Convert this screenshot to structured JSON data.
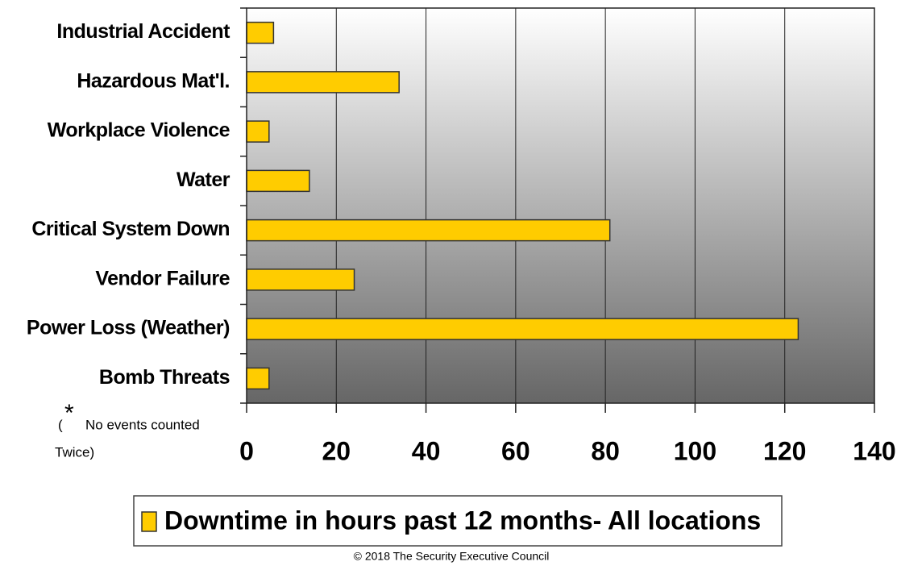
{
  "chart_data": {
    "type": "barh",
    "categories": [
      "Industrial Accident",
      "Hazardous Mat'l.",
      "Workplace Violence",
      "Water",
      "Critical System Down",
      "Vendor Failure",
      "Power Loss (Weather)",
      "Bomb Threats"
    ],
    "series": [
      {
        "name": "Downtime in hours past 12 months- All locations",
        "color": "#ffcc00",
        "values": [
          6,
          34,
          5,
          14,
          81,
          24,
          123,
          5
        ]
      }
    ],
    "xlim": [
      0,
      140
    ],
    "xticks": [
      0,
      20,
      40,
      60,
      80,
      100,
      120,
      140
    ],
    "grid": true,
    "legend": "bottom",
    "note": {
      "open": "(",
      "star": "*",
      "text": "No events counted",
      "close": "Twice)"
    },
    "footer": "© 2018 The Security Executive Council"
  }
}
